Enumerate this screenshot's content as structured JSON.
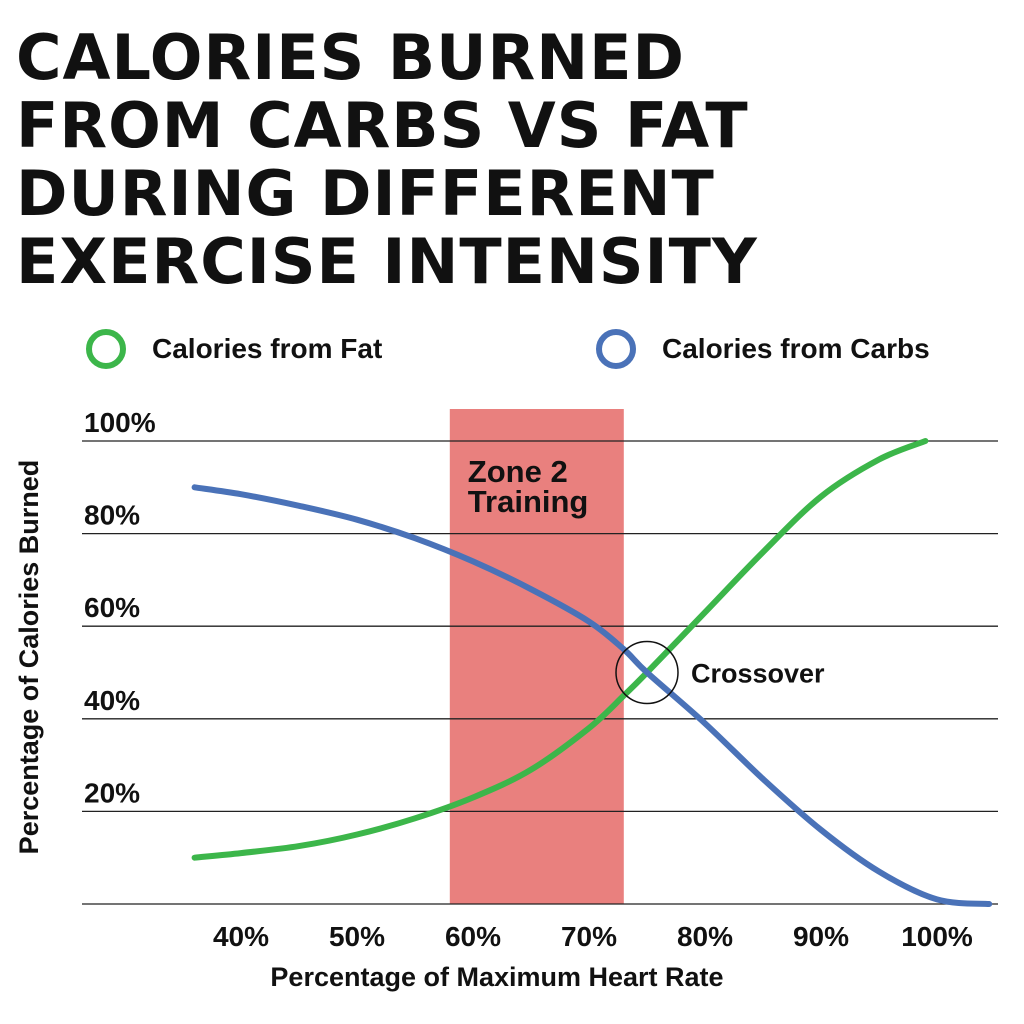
{
  "title_lines": [
    "CALORIES BURNED",
    "FROM CARBS VS FAT",
    "DURING DIFFERENT",
    "EXERCISE INTENSITY"
  ],
  "legend": [
    {
      "label": "Calories from Fat",
      "color": "#3cb64a"
    },
    {
      "label": "Calories from Carbs",
      "color": "#4a72b8"
    }
  ],
  "chart_data": {
    "type": "line",
    "title": "CALORIES BURNED FROM CARBS VS FAT DURING DIFFERENT EXERCISE INTENSITY",
    "xlabel": "Percentage of Maximum Heart Rate",
    "ylabel": "Percentage of Calories Burned",
    "x_tick_labels": [
      "40%",
      "50%",
      "60%",
      "70%",
      "80%",
      "90%",
      "100%"
    ],
    "y_tick_labels": [
      "20%",
      "40%",
      "60%",
      "80%",
      "100%"
    ],
    "xlim": [
      35,
      105
    ],
    "ylim": [
      0,
      100
    ],
    "grid": "horizontal",
    "legend_position": "top",
    "series": [
      {
        "name": "Calories from Fat",
        "color": "#3cb64a",
        "points": [
          [
            36,
            10
          ],
          [
            40,
            11
          ],
          [
            45,
            12.5
          ],
          [
            50,
            15
          ],
          [
            55,
            18.5
          ],
          [
            60,
            23
          ],
          [
            65,
            29
          ],
          [
            70,
            38
          ],
          [
            73,
            45
          ],
          [
            75,
            50
          ],
          [
            80,
            63
          ],
          [
            85,
            76
          ],
          [
            90,
            88
          ],
          [
            95,
            96
          ],
          [
            99,
            100
          ]
        ]
      },
      {
        "name": "Calories from Carbs",
        "color": "#4a72b8",
        "points": [
          [
            36,
            90
          ],
          [
            40,
            88.5
          ],
          [
            45,
            86
          ],
          [
            50,
            83
          ],
          [
            55,
            79
          ],
          [
            60,
            74
          ],
          [
            65,
            68
          ],
          [
            70,
            61
          ],
          [
            73,
            55
          ],
          [
            75,
            50
          ],
          [
            80,
            39
          ],
          [
            85,
            27
          ],
          [
            90,
            16
          ],
          [
            95,
            7
          ],
          [
            100,
            1
          ],
          [
            104.5,
            0
          ]
        ]
      }
    ],
    "highlight_band": {
      "x_from": 58,
      "x_to": 73,
      "label_lines": [
        "Zone 2",
        "Training"
      ],
      "color": "#e9807e"
    },
    "annotations": [
      {
        "text": "Crossover",
        "x": 75,
        "y": 50
      }
    ]
  }
}
